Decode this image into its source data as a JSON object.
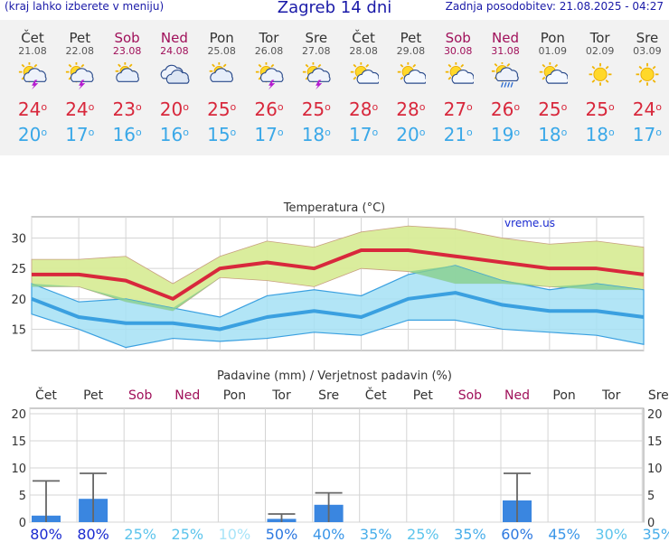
{
  "header": {
    "left": "(kraj lahko izberete v meniju)",
    "title": "Zagreb 14 dni",
    "right": "Zadnja posodobitev: 21.08.2025 - 04:27"
  },
  "days": [
    {
      "name": "Čet",
      "date": "21.08",
      "icon": "sun-cloud-storm-icon",
      "max": "24",
      "min": "20",
      "weekend": false
    },
    {
      "name": "Pet",
      "date": "22.08",
      "icon": "sun-cloud-storm-icon",
      "max": "24",
      "min": "17",
      "weekend": false
    },
    {
      "name": "Sob",
      "date": "23.08",
      "icon": "partly-cloudy-icon",
      "max": "23",
      "min": "16",
      "weekend": true
    },
    {
      "name": "Ned",
      "date": "24.08",
      "icon": "cloudy-icon",
      "max": "20",
      "min": "16",
      "weekend": true
    },
    {
      "name": "Pon",
      "date": "25.08",
      "icon": "partly-cloudy-icon",
      "max": "25",
      "min": "15",
      "weekend": false
    },
    {
      "name": "Tor",
      "date": "26.08",
      "icon": "sun-cloud-storm-icon",
      "max": "26",
      "min": "17",
      "weekend": false
    },
    {
      "name": "Sre",
      "date": "27.08",
      "icon": "sun-cloud-storm-icon",
      "max": "25",
      "min": "18",
      "weekend": false
    },
    {
      "name": "Čet",
      "date": "28.08",
      "icon": "mostly-sunny-icon",
      "max": "28",
      "min": "17",
      "weekend": false
    },
    {
      "name": "Pet",
      "date": "29.08",
      "icon": "mostly-sunny-icon",
      "max": "28",
      "min": "20",
      "weekend": false
    },
    {
      "name": "Sob",
      "date": "30.08",
      "icon": "mostly-sunny-icon",
      "max": "27",
      "min": "21",
      "weekend": true
    },
    {
      "name": "Ned",
      "date": "31.08",
      "icon": "sun-cloud-rain-icon",
      "max": "26",
      "min": "19",
      "weekend": true
    },
    {
      "name": "Pon",
      "date": "01.09",
      "icon": "mostly-sunny-icon",
      "max": "25",
      "min": "18",
      "weekend": false
    },
    {
      "name": "Tor",
      "date": "02.09",
      "icon": "sunny-icon",
      "max": "25",
      "min": "18",
      "weekend": false
    },
    {
      "name": "Sre",
      "date": "03.09",
      "icon": "sunny-icon",
      "max": "24",
      "min": "17",
      "weekend": false
    }
  ],
  "degree_symbol": "o",
  "chart_data": [
    {
      "type": "line",
      "title": "Temperatura (°C)",
      "watermark": "vreme.us",
      "x": [
        "21.08",
        "22.08",
        "23.08",
        "24.08",
        "25.08",
        "26.08",
        "27.08",
        "28.08",
        "29.08",
        "30.08",
        "31.08",
        "01.09",
        "02.09",
        "03.09"
      ],
      "ylim": [
        11.5,
        33.5
      ],
      "yticks": [
        15,
        20,
        25,
        30
      ],
      "grid": true,
      "series": [
        {
          "values": [
            24,
            24,
            23,
            20,
            25,
            26,
            25,
            28,
            28,
            27,
            26,
            25,
            25,
            24
          ],
          "color": "#d8283c"
        },
        {
          "values": [
            20,
            17,
            16,
            16,
            15,
            17,
            18,
            17,
            20,
            21,
            19,
            18,
            18,
            17
          ],
          "color": "#3aa0e0"
        }
      ],
      "max_band_upper": [
        26.5,
        26.5,
        27,
        22.5,
        27,
        29.5,
        28.5,
        31,
        32,
        31.5,
        30,
        29,
        29.5,
        28.5
      ],
      "max_band_lower": [
        22,
        22,
        19.5,
        18,
        23.5,
        23,
        22,
        25,
        24.5,
        22.5,
        22.5,
        22,
        21.5,
        21.5
      ],
      "min_band_upper": [
        22.5,
        19.5,
        20,
        18.5,
        17,
        20.5,
        21.5,
        20.5,
        24,
        25.5,
        23,
        21.5,
        22.5,
        21.5
      ],
      "min_band_lower": [
        17.5,
        15,
        12,
        13.5,
        13,
        13.5,
        14.5,
        14,
        16.5,
        16.5,
        15,
        14.5,
        14,
        12.5
      ],
      "max_band_color": "#d8ec98",
      "min_band_color": "#a4e0f4",
      "overlap_color": "#88d090"
    },
    {
      "type": "bar",
      "title": "Padavine (mm) / Verjetnost padavin (%)",
      "categories": [
        "Čet",
        "Pet",
        "Sob",
        "Ned",
        "Pon",
        "Tor",
        "Sre",
        "Čet",
        "Pet",
        "Sob",
        "Ned",
        "Pon",
        "Tor",
        "Sre"
      ],
      "weekend": [
        false,
        false,
        true,
        true,
        false,
        false,
        false,
        false,
        false,
        true,
        true,
        false,
        false,
        false
      ],
      "values": [
        1.2,
        4.3,
        0,
        0,
        0,
        0.6,
        3.2,
        0,
        0,
        0,
        4.0,
        0,
        0,
        0
      ],
      "error_max": [
        7.6,
        9.0,
        0,
        0,
        0,
        1.5,
        5.4,
        0,
        0,
        0,
        9.0,
        0,
        0,
        0
      ],
      "probability": [
        "80%",
        "80%",
        "25%",
        "25%",
        "10%",
        "50%",
        "40%",
        "35%",
        "25%",
        "35%",
        "60%",
        "45%",
        "30%",
        "35%"
      ],
      "probability_colors": [
        "#1a2ad0",
        "#1a2ad0",
        "#5cc4ec",
        "#5cc4ec",
        "#a8e4f8",
        "#2c78e0",
        "#3a96e8",
        "#48aeea",
        "#5cc4ec",
        "#48aeea",
        "#2c78e0",
        "#3a96e8",
        "#5cc4ec",
        "#48aeea"
      ],
      "ylim": [
        0,
        21
      ],
      "yticks": [
        0,
        5,
        10,
        15,
        20
      ],
      "bar_color": "#3a86e0",
      "grid": true
    }
  ]
}
